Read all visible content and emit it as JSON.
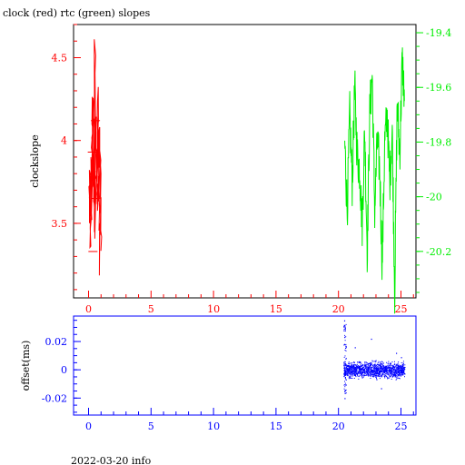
{
  "title": "clock (red) rtc (green) slopes",
  "footer": "2022-03-20 info",
  "colors": {
    "clock": "#ff0000",
    "rtc": "#00ee00",
    "offset": "#0000ff",
    "frame": "#000000"
  },
  "chart_data": [
    {
      "type": "line",
      "title": "clock (red) rtc (green) slopes",
      "xlabel": "",
      "ylabel": "clockslope",
      "xlim": [
        -1.2,
        26.2
      ],
      "ylim": [
        3.05,
        4.7
      ],
      "y2lim": [
        -20.37,
        -19.37
      ],
      "x_ticks": [
        0,
        5,
        10,
        15,
        20,
        25
      ],
      "y_ticks": [
        3.5,
        4,
        4.5
      ],
      "y2_ticks": [
        -20.2,
        -20,
        -19.8,
        -19.6,
        -19.4
      ],
      "y_tick_labels": [
        "3.5",
        "4",
        "4.5"
      ],
      "y2_tick_labels": [
        "-20.2",
        "-20",
        "-19.8",
        "-19.6",
        "-19.4"
      ],
      "x_tick_labels": [
        "0",
        "5",
        "10",
        "15",
        "20",
        "25"
      ],
      "grid": false,
      "series": [
        {
          "name": "clock",
          "axis": "left",
          "color": "#ff0000",
          "x": [
            0.05,
            0.1,
            0.15,
            0.2,
            0.25,
            0.3,
            0.35,
            0.4,
            0.45,
            0.5,
            0.55,
            0.6,
            0.65,
            0.7,
            0.75,
            0.8,
            0.85,
            0.9,
            0.95,
            1.0
          ],
          "y": [
            3.55,
            3.75,
            3.4,
            3.95,
            3.6,
            4.15,
            3.7,
            4.25,
            3.45,
            4.6,
            3.5,
            4.05,
            3.85,
            3.6,
            4.2,
            3.55,
            4.1,
            3.3,
            3.9,
            3.2
          ]
        },
        {
          "name": "rtc",
          "axis": "right",
          "color": "#00ee00",
          "x": [
            20.5,
            20.7,
            20.9,
            21.1,
            21.3,
            21.5,
            21.7,
            21.9,
            22.1,
            22.3,
            22.5,
            22.7,
            22.9,
            23.1,
            23.3,
            23.5,
            23.7,
            23.9,
            24.1,
            24.3,
            24.5,
            24.7,
            24.9,
            25.1,
            25.3
          ],
          "y": [
            -19.8,
            -20.05,
            -19.7,
            -19.95,
            -19.6,
            -19.85,
            -19.9,
            -20.1,
            -19.75,
            -20.2,
            -19.7,
            -19.55,
            -20.05,
            -19.8,
            -19.9,
            -20.25,
            -19.8,
            -19.7,
            -19.95,
            -19.75,
            -20.35,
            -19.65,
            -19.85,
            -19.5,
            -19.65
          ]
        }
      ]
    },
    {
      "type": "scatter",
      "xlabel": "",
      "ylabel": "offset(ms)",
      "xlim": [
        -1.2,
        26.2
      ],
      "ylim": [
        -0.032,
        0.038
      ],
      "x_ticks": [
        0,
        5,
        10,
        15,
        20,
        25
      ],
      "x_tick_labels": [
        "0",
        "5",
        "10",
        "15",
        "20",
        "25"
      ],
      "y_ticks": [
        -0.02,
        0,
        0.02
      ],
      "y_tick_labels": [
        "-0.02",
        "0",
        "0.02"
      ],
      "grid": false,
      "series": [
        {
          "name": "offset",
          "color": "#0000ff",
          "x_range": [
            20.4,
            25.3
          ],
          "center": 0.0,
          "spread": 0.004,
          "outliers": [
            {
              "x": 20.45,
              "y": 0.035
            },
            {
              "x": 20.48,
              "y": -0.02
            },
            {
              "x": 20.52,
              "y": 0.028
            },
            {
              "x": 21.3,
              "y": 0.016
            },
            {
              "x": 22.6,
              "y": 0.022
            },
            {
              "x": 23.4,
              "y": -0.013
            },
            {
              "x": 24.6,
              "y": 0.012
            },
            {
              "x": 25.0,
              "y": 0.009
            }
          ]
        }
      ]
    }
  ]
}
